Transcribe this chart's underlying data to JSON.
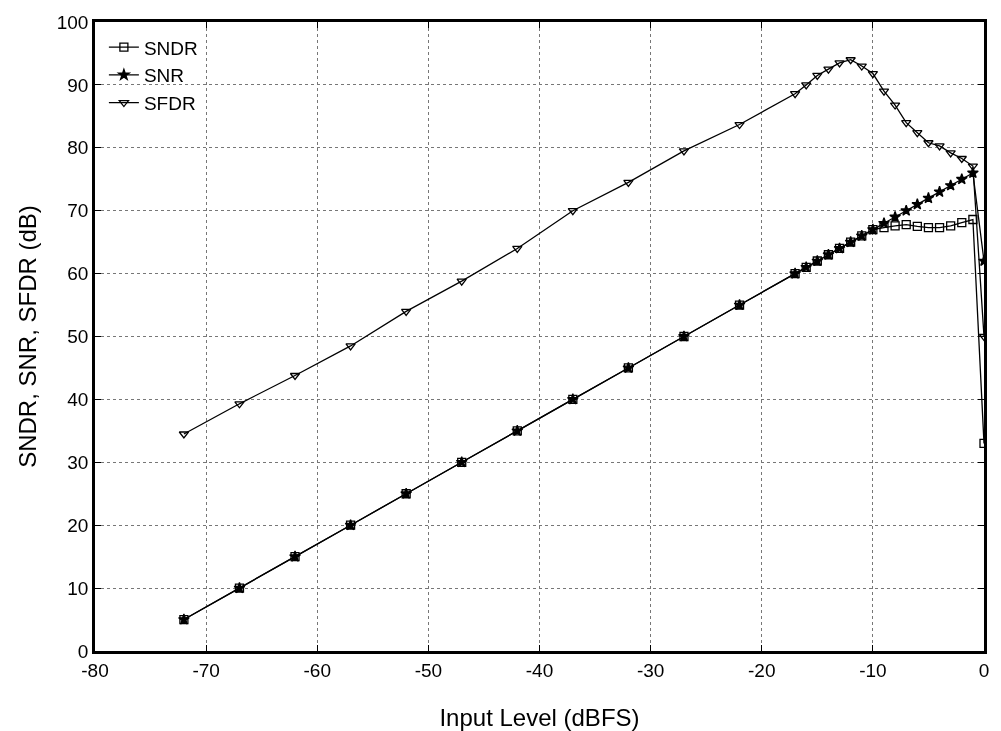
{
  "chart_data": {
    "type": "line",
    "xlabel": "Input Level (dBFS)",
    "ylabel": "SNDR, SNR, SFDR (dB)",
    "x": [
      -72,
      -67,
      -62,
      -57,
      -52,
      -47,
      -42,
      -37,
      -32,
      -27,
      -22,
      -17,
      -16,
      -15,
      -14,
      -13,
      -12,
      -11,
      -10,
      -9,
      -8,
      -7,
      -6,
      -5,
      -4,
      -3,
      -2,
      -1,
      0
    ],
    "series": [
      {
        "name": "SNDR",
        "color": "#000000",
        "marker": "square",
        "values": [
          5,
          10,
          15,
          20,
          25,
          30,
          35,
          40,
          45,
          50,
          55,
          60,
          61,
          62,
          63,
          64,
          65,
          66,
          67,
          67.3,
          67.6,
          67.8,
          67.5,
          67.3,
          67.3,
          67.6,
          68.1,
          68.6,
          33
        ]
      },
      {
        "name": "SNR",
        "color": "#000000",
        "marker": "star",
        "values": [
          5,
          10,
          15,
          20,
          25,
          30,
          35,
          40,
          45,
          50,
          55,
          60,
          61,
          62,
          63,
          64,
          65,
          66,
          67,
          68,
          69,
          70,
          71,
          72,
          73,
          74,
          75,
          76,
          62
        ]
      },
      {
        "name": "SFDR",
        "color": "#000000",
        "marker": "triangle",
        "values": [
          34.5,
          39.3,
          43.8,
          48.5,
          54,
          58.8,
          64,
          70,
          74.5,
          79.5,
          83.7,
          88.6,
          90,
          91.5,
          92.5,
          93.5,
          94,
          93,
          91.8,
          89,
          86.8,
          84,
          82.4,
          80.8,
          80.3,
          79.2,
          78.3,
          77.1,
          50
        ]
      }
    ],
    "xlim": [
      -80,
      0
    ],
    "xticks": [
      -80,
      -70,
      -60,
      -50,
      -40,
      -30,
      -20,
      -10,
      0
    ],
    "ylim": [
      0,
      100
    ],
    "yticks": [
      0,
      10,
      20,
      30,
      40,
      50,
      60,
      70,
      80,
      90,
      100
    ],
    "grid": true,
    "legend": "top left",
    "line_style": "solid"
  }
}
